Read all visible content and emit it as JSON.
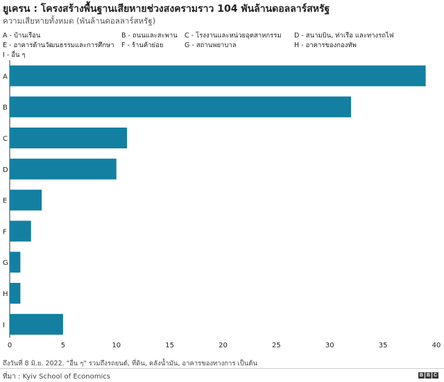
{
  "header": {
    "title": "ยูเครน : โครงสร้างพื้นฐานเสียหายช่วงสงครามราว 104 พันล้านดอลลาร์สหรัฐ",
    "subtitle": "ความเสียหายทั้งหมด (พันล้านดอลลาร์สหรัฐ)"
  },
  "legend": [
    "A - บ้านเรือน",
    "B - ถนนและสะพาน",
    "C - โรงงานและหน่วยอุตสาหกรรม",
    "D - สนามบิน, ท่าเรือ และทางรถไฟ",
    "E - อาคารด้านวัฒนธรรมและการศึกษา",
    "F - ร้านค้าย่อย",
    "G - สถานพยาบาล",
    "H - อาคารของกองทัพ",
    "I - อื่น ๆ"
  ],
  "chart_data": {
    "type": "bar",
    "orientation": "horizontal",
    "title": "ยูเครน : โครงสร้างพื้นฐานเสียหายช่วงสงครามราว 104 พันล้านดอลลาร์สหรัฐ",
    "subtitle": "ความเสียหายทั้งหมด (พันล้านดอลลาร์สหรัฐ)",
    "categories": [
      "A",
      "B",
      "C",
      "D",
      "E",
      "F",
      "G",
      "H",
      "I"
    ],
    "values": [
      39,
      32,
      11,
      10,
      3,
      2,
      1,
      1,
      5
    ],
    "xlim": [
      0,
      40
    ],
    "xticks": [
      0,
      5,
      10,
      15,
      20,
      25,
      30,
      35,
      40
    ],
    "xlabel": "",
    "ylabel": "",
    "bar_color": "#1380A1",
    "legend_position": "top"
  },
  "footer": {
    "note": "ถึงวันที่ 8 มิ.ย. 2022. \"อื่น ๆ\" รวมถึงรถยนต์, ที่ดิน, คลังน้ำมัน, อาคารของทางการ เป็นต้น",
    "source": "ที่มา : Kyiv School of Economics",
    "logo_letters": [
      "B",
      "B",
      "C"
    ]
  }
}
